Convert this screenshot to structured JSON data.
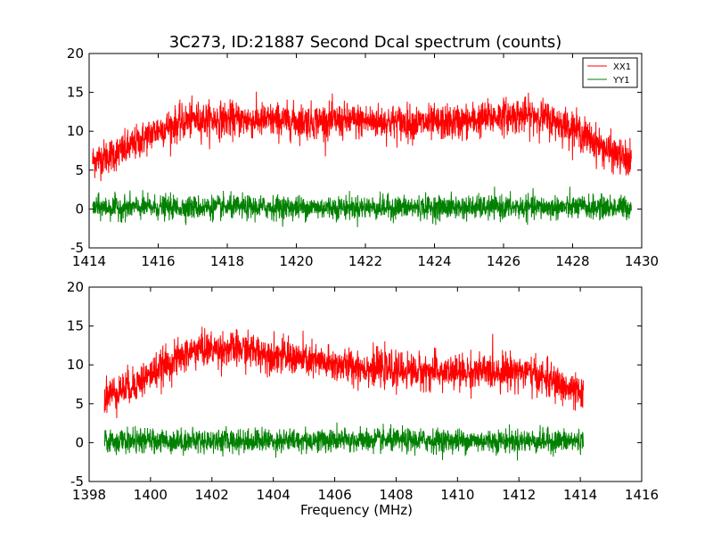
{
  "figure": {
    "title": "3C273, ID:21887 Second Dcal spectrum (counts)"
  },
  "chart_data": [
    {
      "type": "line",
      "xlim": [
        1414,
        1430
      ],
      "ylim": [
        -5,
        20
      ],
      "xticks": [
        1414,
        1416,
        1418,
        1420,
        1422,
        1424,
        1426,
        1428,
        1430
      ],
      "yticks": [
        -5,
        0,
        5,
        10,
        15,
        20
      ],
      "xlabel": "",
      "legend": {
        "placement": "top-right"
      },
      "series": [
        {
          "name": "XX1",
          "color": "#ff0000",
          "x_range": [
            1414.1,
            1429.7
          ],
          "envelope": [
            [
              1414.1,
              6.2
            ],
            [
              1415,
              7.5
            ],
            [
              1416,
              10.2
            ],
            [
              1417,
              11.5
            ],
            [
              1418,
              11.5
            ],
            [
              1420,
              11.3
            ],
            [
              1422,
              11.3
            ],
            [
              1424,
              11.0
            ],
            [
              1425,
              11.3
            ],
            [
              1426,
              12.0
            ],
            [
              1427,
              12.0
            ],
            [
              1428,
              10.5
            ],
            [
              1429,
              7.5
            ],
            [
              1429.7,
              6.0
            ]
          ],
          "noise_amplitude": 1.5
        },
        {
          "name": "YY1",
          "color": "#008000",
          "x_range": [
            1414.1,
            1429.7
          ],
          "envelope": [
            [
              1414.1,
              0.2
            ],
            [
              1422,
              0.2
            ],
            [
              1429.7,
              0.2
            ]
          ],
          "noise_amplitude": 1.0
        }
      ]
    },
    {
      "type": "line",
      "xlim": [
        1398,
        1416
      ],
      "ylim": [
        -5,
        20
      ],
      "xticks": [
        1398,
        1400,
        1402,
        1404,
        1406,
        1408,
        1410,
        1412,
        1414,
        1416
      ],
      "yticks": [
        -5,
        0,
        5,
        10,
        15,
        20
      ],
      "xlabel": "Frequency (MHz)",
      "series": [
        {
          "color": "#ff0000",
          "x_range": [
            1398.5,
            1414.1
          ],
          "envelope": [
            [
              1398.5,
              6.0
            ],
            [
              1399.5,
              7.5
            ],
            [
              1400.5,
              10.0
            ],
            [
              1401.5,
              12.0
            ],
            [
              1403,
              12.0
            ],
            [
              1404,
              11.3
            ],
            [
              1406,
              10.0
            ],
            [
              1408,
              9.3
            ],
            [
              1410,
              9.0
            ],
            [
              1412,
              9.3
            ],
            [
              1413,
              8.0
            ],
            [
              1414.1,
              6.0
            ]
          ],
          "noise_amplitude": 1.5
        },
        {
          "color": "#008000",
          "x_range": [
            1398.5,
            1414.1
          ],
          "envelope": [
            [
              1398.5,
              0.2
            ],
            [
              1406,
              0.3
            ],
            [
              1414.1,
              0.2
            ]
          ],
          "noise_amplitude": 1.0
        }
      ]
    }
  ]
}
